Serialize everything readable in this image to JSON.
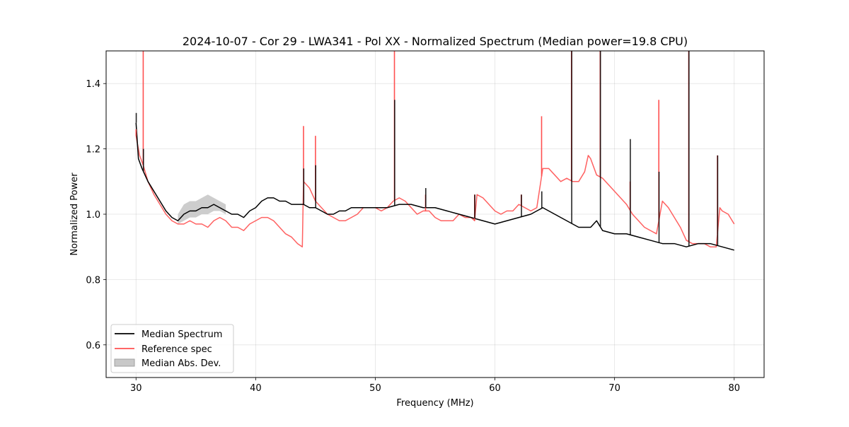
{
  "chart_data": {
    "type": "line",
    "title": "2024-10-07 - Cor 29 - LWA341 - Pol XX - Normalized Spectrum (Median power=19.8 CPU)",
    "xlabel": "Frequency (MHz)",
    "ylabel": "Normalized Power",
    "xlim": [
      27.5,
      82.5
    ],
    "ylim": [
      0.5,
      1.5
    ],
    "xticks": [
      30,
      40,
      50,
      60,
      70,
      80
    ],
    "yticks": [
      0.6,
      0.8,
      1.0,
      1.2,
      1.4
    ],
    "xtick_labels": [
      "30",
      "40",
      "50",
      "60",
      "70",
      "80"
    ],
    "ytick_labels": [
      "0.6",
      "0.8",
      "1.0",
      "1.2",
      "1.4"
    ],
    "grid": true,
    "legend_position": "lower-left",
    "legend": [
      {
        "label": "Median Spectrum",
        "kind": "line",
        "color": "#000000"
      },
      {
        "label": "Reference spec",
        "kind": "line",
        "color": "#ff5050"
      },
      {
        "label": "Median Abs. Dev.",
        "kind": "patch",
        "color": "#c8c8c8"
      }
    ],
    "series": [
      {
        "name": "Median Spectrum",
        "color": "#000000",
        "x": [
          30.0,
          30.2,
          30.5,
          31.0,
          31.5,
          32.0,
          32.5,
          33.0,
          33.5,
          34.0,
          34.5,
          35.0,
          35.5,
          36.0,
          36.5,
          37.0,
          37.5,
          38.0,
          38.5,
          39.0,
          39.5,
          40.0,
          40.5,
          41.0,
          41.5,
          42.0,
          42.5,
          43.0,
          43.5,
          44.0,
          44.5,
          45.0,
          45.5,
          46.0,
          46.5,
          47.0,
          47.5,
          48.0,
          49.0,
          50.0,
          51.0,
          52.0,
          53.0,
          54.0,
          55.0,
          56.0,
          57.0,
          58.0,
          59.0,
          60.0,
          61.0,
          62.0,
          63.0,
          63.5,
          64.0,
          64.5,
          65.0,
          66.0,
          67.0,
          68.0,
          68.5,
          69.0,
          70.0,
          71.0,
          72.0,
          73.0,
          74.0,
          75.0,
          76.0,
          77.0,
          78.0,
          79.0,
          80.0
        ],
        "y": [
          1.28,
          1.17,
          1.14,
          1.1,
          1.07,
          1.04,
          1.01,
          0.99,
          0.98,
          1.0,
          1.01,
          1.01,
          1.02,
          1.02,
          1.03,
          1.02,
          1.01,
          1.0,
          1.0,
          0.99,
          1.01,
          1.02,
          1.04,
          1.05,
          1.05,
          1.04,
          1.04,
          1.03,
          1.03,
          1.03,
          1.02,
          1.02,
          1.01,
          1.0,
          1.0,
          1.01,
          1.01,
          1.02,
          1.02,
          1.02,
          1.02,
          1.03,
          1.03,
          1.02,
          1.02,
          1.01,
          1.0,
          0.99,
          0.98,
          0.97,
          0.98,
          0.99,
          1.0,
          1.01,
          1.02,
          1.01,
          1.0,
          0.98,
          0.96,
          0.96,
          0.98,
          0.95,
          0.94,
          0.94,
          0.93,
          0.92,
          0.91,
          0.91,
          0.9,
          0.91,
          0.91,
          0.9,
          0.89
        ]
      },
      {
        "name": "Reference spec",
        "color": "#ff5050",
        "x": [
          30.0,
          30.3,
          30.6,
          31.0,
          31.5,
          32.0,
          32.5,
          33.0,
          33.5,
          34.0,
          34.5,
          35.0,
          35.5,
          36.0,
          36.5,
          37.0,
          37.5,
          38.0,
          38.5,
          39.0,
          39.5,
          40.0,
          40.5,
          41.0,
          41.5,
          42.0,
          42.5,
          43.0,
          43.5,
          43.9,
          44.0,
          44.5,
          45.0,
          45.5,
          46.0,
          46.5,
          47.0,
          47.5,
          48.0,
          48.5,
          49.0,
          49.5,
          50.0,
          50.5,
          51.0,
          51.5,
          52.0,
          52.5,
          53.0,
          53.5,
          54.0,
          54.5,
          55.0,
          55.5,
          56.0,
          56.5,
          57.0,
          57.5,
          58.0,
          58.3,
          58.5,
          59.0,
          59.5,
          60.0,
          60.5,
          61.0,
          61.5,
          62.0,
          62.5,
          63.0,
          63.5,
          64.0,
          64.5,
          65.0,
          65.5,
          66.0,
          66.5,
          67.0,
          67.5,
          67.8,
          68.0,
          68.5,
          69.0,
          69.5,
          70.0,
          70.5,
          71.0,
          71.5,
          72.0,
          72.5,
          73.0,
          73.5,
          74.0,
          74.5,
          75.0,
          75.5,
          76.0,
          76.5,
          77.0,
          77.5,
          78.0,
          78.5,
          78.8,
          79.0,
          79.5,
          80.0
        ],
        "y": [
          1.24,
          1.18,
          1.15,
          1.1,
          1.06,
          1.03,
          1.0,
          0.98,
          0.97,
          0.97,
          0.98,
          0.97,
          0.97,
          0.96,
          0.98,
          0.99,
          0.98,
          0.96,
          0.96,
          0.95,
          0.97,
          0.98,
          0.99,
          0.99,
          0.98,
          0.96,
          0.94,
          0.93,
          0.91,
          0.9,
          1.1,
          1.08,
          1.04,
          1.02,
          1.0,
          0.99,
          0.98,
          0.98,
          0.99,
          1.0,
          1.02,
          1.02,
          1.02,
          1.01,
          1.02,
          1.04,
          1.05,
          1.04,
          1.02,
          1.0,
          1.01,
          1.01,
          0.99,
          0.98,
          0.98,
          0.98,
          1.0,
          0.99,
          0.99,
          0.98,
          1.06,
          1.05,
          1.03,
          1.01,
          1.0,
          1.01,
          1.01,
          1.03,
          1.02,
          1.01,
          1.02,
          1.14,
          1.14,
          1.12,
          1.1,
          1.11,
          1.1,
          1.1,
          1.13,
          1.18,
          1.17,
          1.12,
          1.11,
          1.09,
          1.07,
          1.05,
          1.03,
          1.0,
          0.98,
          0.96,
          0.95,
          0.94,
          1.04,
          1.02,
          0.99,
          0.96,
          0.92,
          0.91,
          0.91,
          0.91,
          0.9,
          0.9,
          1.02,
          1.01,
          1.0,
          0.97
        ]
      }
    ],
    "mad_band": {
      "name": "Median Abs. Dev.",
      "color": "#c8c8c8",
      "x": [
        33.5,
        34.0,
        34.5,
        35.0,
        35.5,
        36.0,
        36.5,
        37.0,
        37.5
      ],
      "lower": [
        0.97,
        0.98,
        0.99,
        0.99,
        1.0,
        1.0,
        1.01,
        1.01,
        1.0
      ],
      "upper": [
        1.0,
        1.03,
        1.04,
        1.04,
        1.05,
        1.06,
        1.05,
        1.04,
        1.03
      ]
    },
    "spikes": [
      {
        "x": 30.0,
        "median": 1.31,
        "reference": 1.26
      },
      {
        "x": 30.6,
        "median": 1.2,
        "reference": 1.5
      },
      {
        "x": 44.0,
        "median": 1.14,
        "reference": 1.27
      },
      {
        "x": 45.0,
        "median": 1.15,
        "reference": 1.24
      },
      {
        "x": 51.6,
        "median": 1.35,
        "reference": 1.5
      },
      {
        "x": 54.2,
        "median": 1.08,
        "reference": 1.06
      },
      {
        "x": 58.3,
        "median": 1.06,
        "reference": 1.06
      },
      {
        "x": 62.2,
        "median": 1.06,
        "reference": 1.06
      },
      {
        "x": 63.9,
        "median": 1.07,
        "reference": 1.3
      },
      {
        "x": 66.4,
        "median": 1.5,
        "reference": 1.5
      },
      {
        "x": 68.8,
        "median": 1.5,
        "reference": 1.5
      },
      {
        "x": 71.3,
        "median": 1.23,
        "reference": 1.1
      },
      {
        "x": 73.7,
        "median": 1.13,
        "reference": 1.35
      },
      {
        "x": 76.2,
        "median": 1.5,
        "reference": 1.5
      },
      {
        "x": 78.6,
        "median": 1.18,
        "reference": 1.18
      }
    ]
  }
}
